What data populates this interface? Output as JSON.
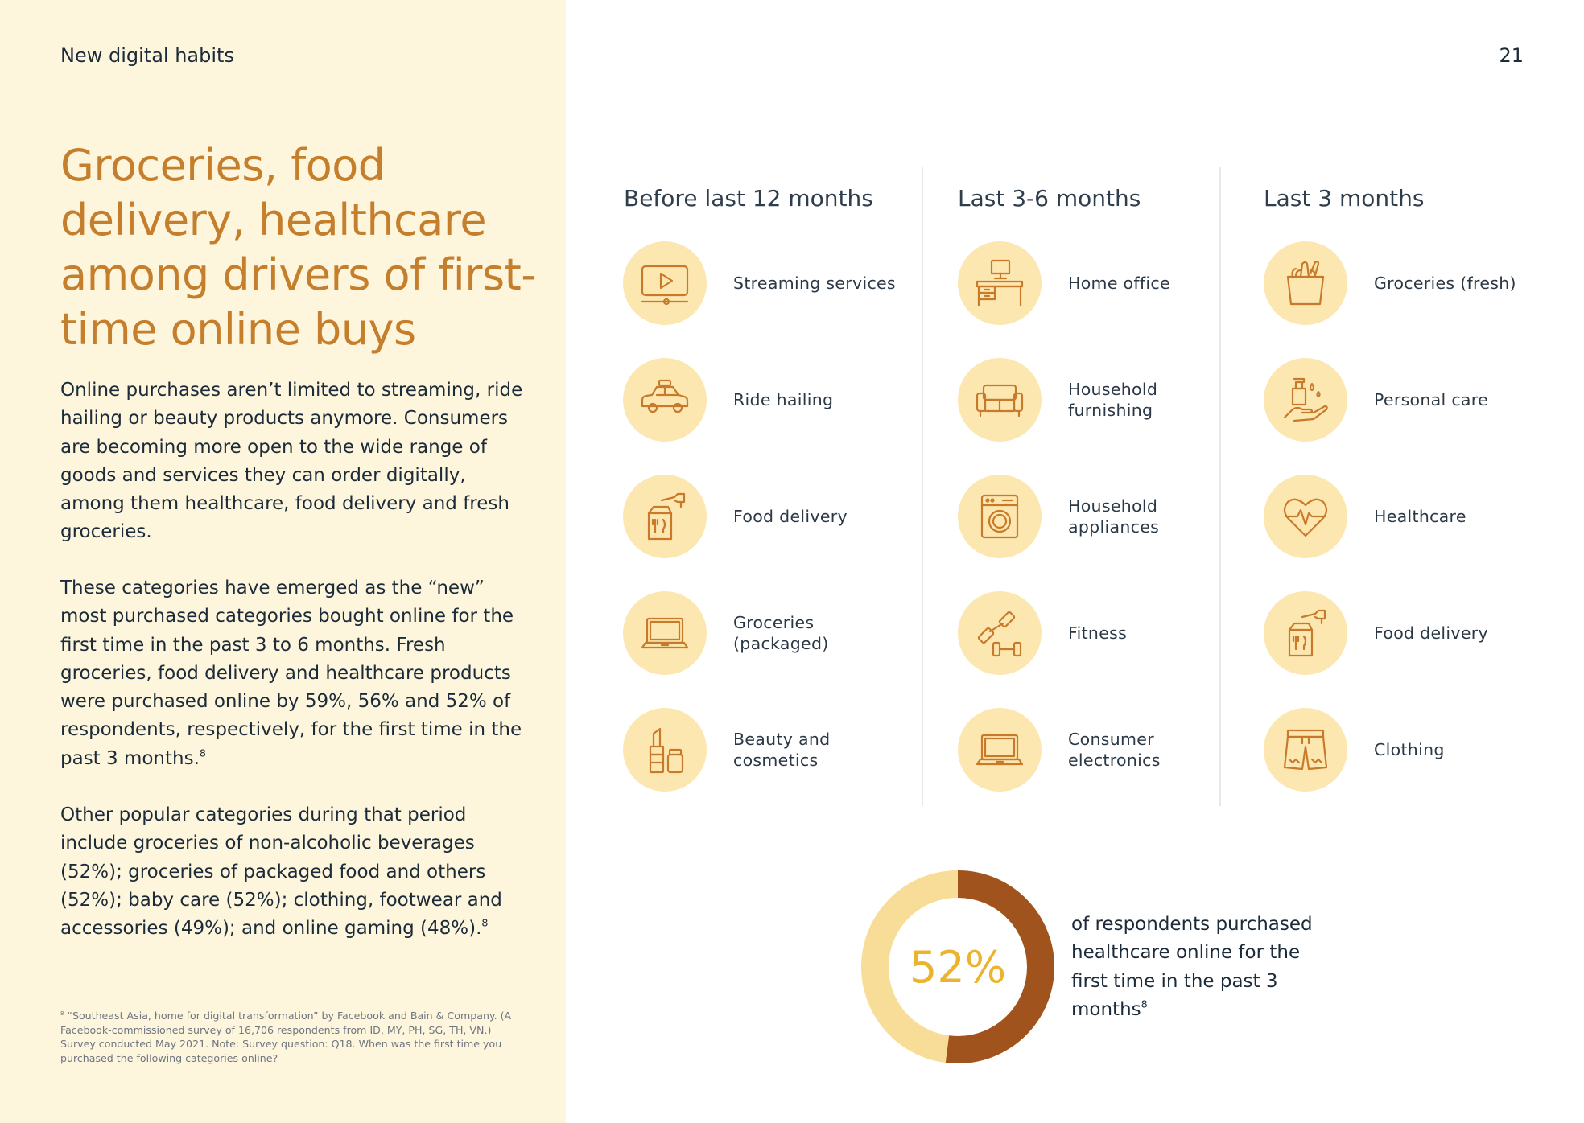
{
  "header": {
    "section": "New digital habits",
    "page_number": "21"
  },
  "left": {
    "headline": "Groceries, food delivery, healthcare among drivers of first-time online buys",
    "paragraph1": "Online purchases aren’t limited to streaming, ride hailing or beauty products anymore. Consumers are becoming more open to the wide range of goods and services they can order digitally, among them healthcare, food delivery and fresh groceries.",
    "paragraph2": "These categories have emerged as the “new” most purchased categories bought online for the first time in the past 3 to 6 months. Fresh groceries, food delivery and healthcare products were purchased online by 59%, 56% and 52% of respondents, respectively, for the first time in the past 3 months.",
    "paragraph2_ref": "8",
    "paragraph3": "Other popular categories during that period include groceries of non-alcoholic beverages (52%); groceries of packaged food and others (52%); baby care (52%); clothing, footwear and accessories (49%); and online gaming (48%).",
    "paragraph3_ref": "8",
    "footnote_mark": "8",
    "footnote": "“Southeast Asia, home for digital transformation” by Facebook and Bain & Company. (A Facebook-commissioned survey of 16,706 respondents from ID, MY, PH, SG, TH, VN.) Survey conducted May 2021. Note: Survey question: Q18. When was the first time you purchased the following categories online?"
  },
  "columns": [
    {
      "title": "Before last 12 months",
      "items": [
        {
          "label": "Streaming services",
          "icon": "streaming-icon"
        },
        {
          "label": "Ride hailing",
          "icon": "car-icon"
        },
        {
          "label": "Food delivery",
          "icon": "food-delivery-icon"
        },
        {
          "label": "Groceries (packaged)",
          "icon": "laptop-icon"
        },
        {
          "label": "Beauty and cosmetics",
          "icon": "cosmetics-icon"
        }
      ]
    },
    {
      "title": "Last 3-6 months",
      "items": [
        {
          "label": "Home office",
          "icon": "desk-icon"
        },
        {
          "label": "Household furnishing",
          "icon": "sofa-icon"
        },
        {
          "label": "Household appliances",
          "icon": "washing-machine-icon"
        },
        {
          "label": "Fitness",
          "icon": "dumbbell-icon"
        },
        {
          "label": "Consumer electronics",
          "icon": "laptop-icon"
        }
      ]
    },
    {
      "title": "Last 3 months",
      "items": [
        {
          "label": "Groceries (fresh)",
          "icon": "grocery-bag-icon"
        },
        {
          "label": "Personal care",
          "icon": "hand-soap-icon"
        },
        {
          "label": "Healthcare",
          "icon": "heart-pulse-icon"
        },
        {
          "label": "Food delivery",
          "icon": "food-delivery-icon"
        },
        {
          "label": "Clothing",
          "icon": "shorts-icon"
        }
      ]
    }
  ],
  "stat": {
    "value": "52%",
    "fraction": 0.52,
    "caption": "of respondents purchased healthcare online for the first time in the past 3 months",
    "ref": "8",
    "colors": {
      "highlight": "#a0531c",
      "rest": "#f8dd99"
    }
  }
}
